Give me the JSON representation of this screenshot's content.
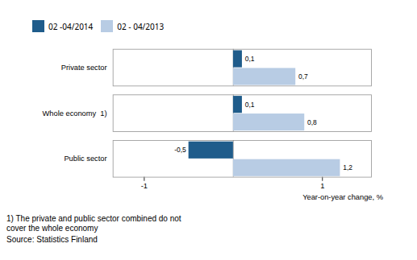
{
  "chart_data": {
    "type": "bar",
    "orientation": "horizontal",
    "categories": [
      "Public sector",
      "Whole economy  1)",
      "Private sector"
    ],
    "series": [
      {
        "name": "02 -04/2014",
        "color": "#1F5C8B",
        "values": [
          -0.5,
          0.1,
          0.1
        ],
        "value_labels": [
          "-0,5",
          "0,1",
          "0,1"
        ]
      },
      {
        "name": "02 - 04/2013",
        "color": "#B8CCE4",
        "values": [
          1.2,
          0.8,
          0.7
        ],
        "value_labels": [
          "1,2",
          "0,8",
          "0,7"
        ]
      }
    ],
    "xlabel": "Year-on-year change, %",
    "xlim": [
      -1.35,
      1.55
    ],
    "xticks": [
      -1,
      1
    ],
    "grid": false,
    "legend": "upper left",
    "data_labels": true,
    "annotations": [
      "1)  The private and public sector combined do not\ncover the whole economy",
      "Source: Statistics Finland"
    ]
  }
}
